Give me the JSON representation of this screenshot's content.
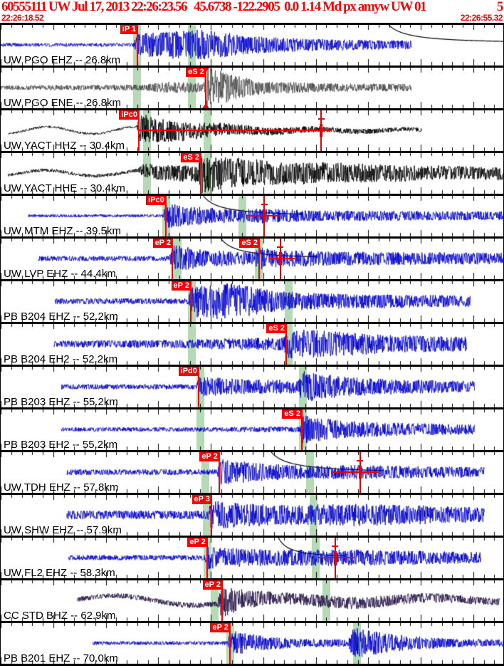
{
  "header": {
    "title": "60555111 UW Jul 17, 2013 22:26:23.56   45.6738 -122.2905  0.0 1.14 Md px amyw UW 01",
    "page": "5",
    "start_time": "22:26:18.52",
    "end_time": "22:26:55.32",
    "text_color": "#ff0000"
  },
  "colors": {
    "blue": "#0000cd",
    "gray": "#4a4a4a",
    "black": "#000000",
    "navy": "#251447",
    "band": "#b6dab6",
    "pick": "#ff0000",
    "curve": "#000000"
  },
  "ticks": {
    "minor_spacing_px": 14.75,
    "major_every": 5
  },
  "traces": [
    {
      "key": "uw-pgo-ehz",
      "label": "UW PGO EHZ -- 26.8km",
      "color": "blue",
      "seed": 101,
      "start": 0.0,
      "end": 0.815,
      "envelope": [
        [
          0,
          2.5
        ],
        [
          0.263,
          2.5
        ],
        [
          0.272,
          16
        ],
        [
          0.4,
          22
        ],
        [
          0.5,
          12
        ],
        [
          0.65,
          8
        ],
        [
          0.815,
          6
        ]
      ],
      "bands": [
        0.263,
        0.371
      ],
      "picks": [
        {
          "label": "iP 1",
          "x": 0.27
        }
      ],
      "curve": {
        "x0": 0.77,
        "x1": 1.0,
        "depth": 27
      }
    },
    {
      "key": "uw-pgo-ene",
      "label": "UW PGO ENE -- 26.8km",
      "color": "gray",
      "seed": 202,
      "start": 0.0,
      "end": 0.815,
      "envelope": [
        [
          0,
          3
        ],
        [
          0.28,
          4
        ],
        [
          0.33,
          8
        ],
        [
          0.38,
          7
        ],
        [
          0.404,
          7
        ],
        [
          0.406,
          32
        ],
        [
          0.45,
          20
        ],
        [
          0.52,
          9
        ],
        [
          0.65,
          6
        ],
        [
          0.815,
          5
        ]
      ],
      "bands": [
        0.263,
        0.371
      ],
      "picks": [
        {
          "label": "eS 2",
          "x": 0.405,
          "tri": true
        }
      ]
    },
    {
      "key": "uw-yact-hhz",
      "label": "UW YACT HHZ -- 30.4km",
      "color": "black",
      "seed": 303,
      "start": 0.015,
      "end": 0.835,
      "envelope": [
        [
          0,
          1.5
        ],
        [
          0.27,
          1.5
        ],
        [
          0.276,
          20
        ],
        [
          0.35,
          14
        ],
        [
          0.45,
          8
        ],
        [
          0.55,
          5
        ],
        [
          0.65,
          4
        ],
        [
          0.835,
          3
        ]
      ],
      "wander": {
        "pts": [
          [
            0,
            5
          ],
          [
            0.27,
            5
          ],
          [
            0.31,
            2
          ],
          [
            1,
            1.5
          ]
        ],
        "freq": 0.05
      },
      "bands": [
        0.282,
        0.402
      ],
      "picks": [
        {
          "label": "iPc0",
          "x": 0.2726
        }
      ],
      "amp_pick": {
        "x": 0.6356,
        "hline": [
          0.2754,
          0.657
        ]
      }
    },
    {
      "key": "uw-yact-hhe",
      "label": "UW YACT HHE -- 30.4km",
      "color": "black",
      "seed": 404,
      "start": 0.015,
      "end": 1.0,
      "envelope": [
        [
          0,
          2
        ],
        [
          0.27,
          2.5
        ],
        [
          0.285,
          10
        ],
        [
          0.39,
          12
        ],
        [
          0.398,
          28
        ],
        [
          0.45,
          22
        ],
        [
          0.55,
          16
        ],
        [
          0.7,
          14
        ],
        [
          0.85,
          10
        ],
        [
          1,
          9
        ]
      ],
      "wander": {
        "pts": [
          [
            0,
            4
          ],
          [
            0.28,
            4
          ],
          [
            0.33,
            1
          ],
          [
            1,
            1
          ]
        ],
        "freq": 0.045
      },
      "bands": [
        0.282,
        0.402
      ],
      "picks": [
        {
          "label": "eS 2",
          "x": 0.3955
        }
      ]
    },
    {
      "key": "uw-mtm-ehz",
      "label": "UW MTM EHZ -- 39.5km",
      "color": "blue",
      "seed": 505,
      "start": 0.055,
      "end": 1.0,
      "envelope": [
        [
          0,
          2
        ],
        [
          0.322,
          2
        ],
        [
          0.328,
          18
        ],
        [
          0.4,
          12
        ],
        [
          0.47,
          9
        ],
        [
          0.52,
          11
        ],
        [
          0.6,
          8
        ],
        [
          0.75,
          7
        ],
        [
          1,
          6
        ]
      ],
      "bands": [
        0.321,
        0.472
      ],
      "picks": [
        {
          "label": "iPc0",
          "x": 0.326
        }
      ],
      "amp_pick": {
        "x": 0.5226,
        "hline": [
          0.487,
          0.553
        ]
      },
      "curve": {
        "x0": 0.402,
        "x1": 0.6,
        "depth": 30
      }
    },
    {
      "key": "uw-lvp-ehz",
      "label": "UW LVP EHZ -- 44.4km",
      "color": "blue",
      "seed": 606,
      "start": 0.075,
      "end": 1.0,
      "envelope": [
        [
          0,
          3.5
        ],
        [
          0.335,
          3.5
        ],
        [
          0.342,
          20
        ],
        [
          0.4,
          12
        ],
        [
          0.5,
          9
        ],
        [
          0.512,
          16
        ],
        [
          0.55,
          12
        ],
        [
          0.65,
          10
        ],
        [
          0.8,
          9
        ],
        [
          1,
          8
        ]
      ],
      "bands": [
        0.343,
        0.504
      ],
      "picks": [
        {
          "label": "eP 2",
          "x": 0.339
        },
        {
          "label": "eS 2",
          "x": 0.5113
        }
      ],
      "amp_pick": {
        "x": 0.555,
        "hline": [
          0.532,
          0.585
        ]
      },
      "curve": {
        "x0": 0.437,
        "x1": 0.63,
        "depth": 30
      }
    },
    {
      "key": "pb-b204-ehz",
      "label": "PB B204 EHZ -- 52.2km",
      "color": "blue",
      "seed": 707,
      "start": 0.108,
      "end": 0.932,
      "envelope": [
        [
          0,
          4
        ],
        [
          0.372,
          4
        ],
        [
          0.378,
          22
        ],
        [
          0.45,
          26
        ],
        [
          0.55,
          14
        ],
        [
          0.7,
          10
        ],
        [
          0.932,
          8
        ]
      ],
      "bands": [
        0.372,
        0.563
      ],
      "picks": [
        {
          "label": "eP 2",
          "x": 0.3757
        }
      ]
    },
    {
      "key": "pb-b204-eh2",
      "label": "PB B204 EH2 -- 52.2km",
      "color": "blue",
      "seed": 808,
      "start": 0.105,
      "end": 0.925,
      "envelope": [
        [
          0,
          4
        ],
        [
          0.375,
          6
        ],
        [
          0.45,
          8
        ],
        [
          0.56,
          9
        ],
        [
          0.566,
          22
        ],
        [
          0.65,
          18
        ],
        [
          0.8,
          12
        ],
        [
          0.925,
          10
        ]
      ],
      "bands": [
        0.372,
        0.563
      ],
      "picks": [
        {
          "label": "eS 2",
          "x": 0.565
        }
      ]
    },
    {
      "key": "pb-b203-ehz",
      "label": "PB B203 EHZ -- 55.2km",
      "color": "blue",
      "seed": 909,
      "start": 0.12,
      "end": 0.94,
      "envelope": [
        [
          0,
          3.5
        ],
        [
          0.388,
          3.5
        ],
        [
          0.393,
          14
        ],
        [
          0.5,
          10
        ],
        [
          0.59,
          10
        ],
        [
          0.6,
          22
        ],
        [
          0.68,
          14
        ],
        [
          0.8,
          10
        ],
        [
          0.94,
          8
        ]
      ],
      "bands": [
        0.389,
        0.592
      ],
      "picks": [
        {
          "label": "iPd0",
          "x": 0.391
        }
      ]
    },
    {
      "key": "pb-b203-eh2",
      "label": "PB B203 EH2 -- 55.2km",
      "color": "blue",
      "seed": 1010,
      "start": 0.12,
      "end": 0.94,
      "envelope": [
        [
          0,
          2.5
        ],
        [
          0.39,
          3
        ],
        [
          0.55,
          4
        ],
        [
          0.594,
          4
        ],
        [
          0.598,
          20
        ],
        [
          0.68,
          12
        ],
        [
          0.8,
          9
        ],
        [
          0.94,
          7
        ]
      ],
      "bands": [
        0.389,
        0.592
      ],
      "picks": [
        {
          "label": "eS 2",
          "x": 0.596
        }
      ]
    },
    {
      "key": "uw-tdh-ehz",
      "label": "UW TDH EHZ -- 57.8km",
      "color": "blue",
      "seed": 1111,
      "start": 0.131,
      "end": 0.96,
      "envelope": [
        [
          0,
          4
        ],
        [
          0.43,
          4
        ],
        [
          0.436,
          18
        ],
        [
          0.52,
          12
        ],
        [
          0.61,
          9
        ],
        [
          0.7,
          10
        ],
        [
          0.85,
          8
        ],
        [
          0.96,
          7
        ]
      ],
      "bands": [
        0.398,
        0.606
      ],
      "picks": [
        {
          "label": "eP 2",
          "x": 0.432
        }
      ],
      "amp_pick": {
        "x": 0.713,
        "hline": [
          0.66,
          0.75
        ]
      },
      "curve": {
        "x0": 0.537,
        "x1": 0.76,
        "depth": 30
      }
    },
    {
      "key": "uw-shw-ehz",
      "label": "UW SHW EHZ -- 57.9km",
      "color": "blue",
      "seed": 1212,
      "start": 0.131,
      "end": 0.96,
      "envelope": [
        [
          0,
          6
        ],
        [
          0.41,
          6
        ],
        [
          0.418,
          20
        ],
        [
          0.5,
          16
        ],
        [
          0.6,
          14
        ],
        [
          0.7,
          16
        ],
        [
          0.85,
          13
        ],
        [
          0.96,
          10
        ]
      ],
      "bands": [
        0.401,
        0.613
      ],
      "picks": [
        {
          "label": "eP 3",
          "x": 0.4166
        }
      ]
    },
    {
      "key": "uw-fl2-ehz",
      "label": "UW FL2 EHZ -- 58.3km",
      "color": "blue",
      "seed": 1313,
      "start": 0.134,
      "end": 0.953,
      "envelope": [
        [
          0,
          3.5
        ],
        [
          0.405,
          3.5
        ],
        [
          0.41,
          16
        ],
        [
          0.5,
          12
        ],
        [
          0.6,
          11
        ],
        [
          0.66,
          12
        ],
        [
          0.8,
          10
        ],
        [
          0.953,
          8
        ]
      ],
      "bands": [
        0.403,
        0.617
      ],
      "picks": [
        {
          "label": "eP 2",
          "x": 0.408
        }
      ],
      "amp_pick": {
        "x": 0.6638,
        "hline": [
          0.63,
          0.7
        ]
      },
      "curve": {
        "x0": 0.551,
        "x1": 0.68,
        "depth": 30
      }
    },
    {
      "key": "cc-std-bhz",
      "label": "CC STD BHZ -- 62.9km",
      "color": "navy",
      "seed": 1414,
      "start": 0.152,
      "end": 0.99,
      "envelope": [
        [
          0,
          3
        ],
        [
          0.43,
          4
        ],
        [
          0.437,
          22
        ],
        [
          0.48,
          14
        ],
        [
          0.55,
          8
        ],
        [
          0.65,
          9
        ],
        [
          0.75,
          8
        ],
        [
          0.9,
          6
        ],
        [
          0.99,
          5
        ]
      ],
      "wander": {
        "pts": [
          [
            0,
            6
          ],
          [
            0.43,
            7
          ],
          [
            0.5,
            3
          ],
          [
            0.8,
            4
          ],
          [
            1,
            2
          ]
        ],
        "freq": 0.028
      },
      "bands": [
        0.417,
        0.638
      ],
      "picks": [
        {
          "label": "eP 2",
          "x": 0.4378
        }
      ]
    },
    {
      "key": "pb-b201-ehz",
      "label": "PB B201 EHZ -- 70.0km",
      "color": "blue",
      "seed": 1515,
      "start": 0.183,
      "end": 1.0,
      "envelope": [
        [
          0,
          2.5
        ],
        [
          0.45,
          2.5
        ],
        [
          0.456,
          18
        ],
        [
          0.52,
          10
        ],
        [
          0.6,
          6
        ],
        [
          0.69,
          5
        ],
        [
          0.7,
          22
        ],
        [
          0.78,
          12
        ],
        [
          0.9,
          6
        ],
        [
          1,
          5
        ]
      ],
      "bands": [
        0.448,
        0.699
      ],
      "picks": [
        {
          "label": "eP 2",
          "x": 0.4533
        }
      ]
    }
  ]
}
